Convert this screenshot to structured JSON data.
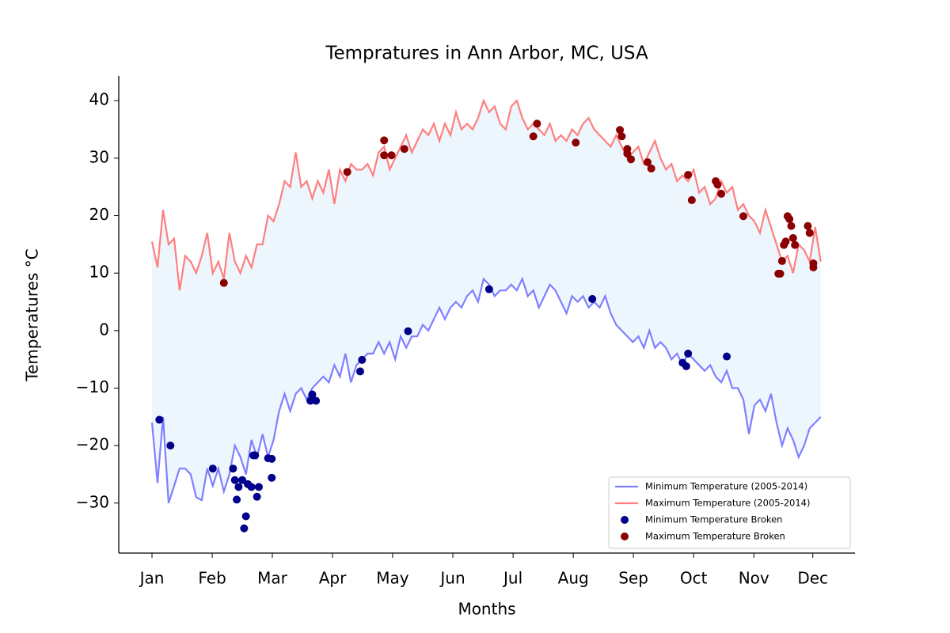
{
  "chart_data": {
    "type": "line",
    "title": "Tempratures in Ann Arbor, MC, USA",
    "x_label": "Months",
    "y_label": "Temperatures °C",
    "xlim": [
      -18.05,
      381.6
    ],
    "ylim": [
      -38.7,
      44.3
    ],
    "xticks": [
      {
        "value": 0,
        "label": "Jan"
      },
      {
        "value": 32.7,
        "label": "Feb"
      },
      {
        "value": 65.3,
        "label": "Mar"
      },
      {
        "value": 98,
        "label": "Apr"
      },
      {
        "value": 130.6,
        "label": "May"
      },
      {
        "value": 163.3,
        "label": "Jun"
      },
      {
        "value": 196,
        "label": "Jul"
      },
      {
        "value": 228.7,
        "label": "Aug"
      },
      {
        "value": 261.3,
        "label": "Sep"
      },
      {
        "value": 294,
        "label": "Oct"
      },
      {
        "value": 326.7,
        "label": "Nov"
      },
      {
        "value": 358.7,
        "label": "Dec"
      }
    ],
    "yticks": [
      {
        "value": -30,
        "label": "−30"
      },
      {
        "value": -20,
        "label": "−20"
      },
      {
        "value": -10,
        "label": "−10"
      },
      0,
      10,
      20,
      30,
      40
    ],
    "fill_between": "#eef6fd",
    "legend": "lower right",
    "x": [
      0,
      3,
      6,
      9,
      12,
      15,
      18,
      21,
      24,
      27,
      30,
      33,
      36,
      39,
      42,
      45,
      48,
      51,
      54,
      57,
      60,
      63,
      66,
      69,
      72,
      75,
      78,
      81,
      84,
      87,
      90,
      93,
      96,
      99,
      102,
      105,
      108,
      111,
      114,
      117,
      120,
      123,
      126,
      129,
      132,
      135,
      138,
      141,
      144,
      147,
      150,
      153,
      156,
      159,
      162,
      165,
      168,
      171,
      174,
      177,
      180,
      183,
      186,
      189,
      192,
      195,
      198,
      201,
      204,
      207,
      210,
      213,
      216,
      219,
      222,
      225,
      228,
      231,
      234,
      237,
      240,
      243,
      246,
      249,
      252,
      255,
      258,
      261,
      264,
      267,
      270,
      273,
      276,
      279,
      282,
      285,
      288,
      291,
      294,
      297,
      300,
      303,
      306,
      309,
      312,
      315,
      318,
      321,
      324,
      327,
      330,
      333,
      336,
      339,
      342,
      345,
      348,
      351,
      354,
      357,
      360,
      363
    ],
    "series": [
      {
        "name": "Minimum Temperature (2005-2014)",
        "type": "line",
        "color": "#7f7fff",
        "values": [
          -16,
          -26.5,
          -15,
          -30,
          -27,
          -24,
          -24,
          -25,
          -29,
          -29.5,
          -24,
          -27,
          -24,
          -28,
          -25,
          -20,
          -22,
          -25,
          -19,
          -22,
          -18,
          -22,
          -19,
          -14,
          -11,
          -14,
          -11,
          -10,
          -12,
          -10,
          -9,
          -8,
          -9,
          -6,
          -8,
          -4,
          -9,
          -6,
          -5,
          -4,
          -4,
          -2,
          -4,
          -2,
          -5,
          -1,
          -3,
          -1,
          -1,
          1,
          0,
          2,
          4,
          2,
          4,
          5,
          4,
          6,
          7,
          5,
          9,
          8,
          6,
          7,
          7,
          8,
          7,
          9,
          6,
          7,
          4,
          6,
          8,
          7,
          5,
          3,
          6,
          5,
          6,
          4,
          5,
          4,
          6,
          3,
          1,
          0,
          -1,
          -2,
          -1,
          -3,
          0,
          -3,
          -2,
          -3,
          -5,
          -4,
          -6,
          -4,
          -5,
          -6,
          -7,
          -6,
          -8,
          -9,
          -7,
          -10,
          -10,
          -12,
          -18,
          -13,
          -12,
          -14,
          -11,
          -16,
          -20,
          -17,
          -19,
          -22,
          -20,
          -17,
          -16,
          -15
        ]
      },
      {
        "name": "Maximum Temperature (2005-2014)",
        "type": "line",
        "color": "#ff7f7f",
        "values": [
          15.5,
          11,
          21,
          15,
          16,
          7,
          13,
          12,
          10,
          13,
          17,
          10,
          12,
          9,
          17,
          12,
          10,
          13,
          11,
          15,
          15,
          20,
          19,
          22,
          26,
          25,
          31,
          25,
          26,
          23,
          26,
          24,
          28,
          22,
          28,
          26,
          29,
          28,
          28,
          29,
          27,
          31,
          32,
          28,
          30,
          32,
          34,
          31,
          33,
          35,
          34,
          36,
          33,
          36,
          34,
          38,
          35,
          36,
          35,
          37,
          40,
          38,
          39,
          36,
          35,
          39,
          40,
          37,
          35,
          36,
          35,
          34,
          36,
          33,
          34,
          33,
          35,
          34,
          36,
          37,
          35,
          34,
          33,
          32,
          34,
          32,
          30,
          31,
          32,
          29,
          31,
          33,
          30,
          28,
          29,
          26,
          27,
          26,
          28,
          24,
          25,
          22,
          23,
          26,
          24,
          25,
          21,
          22,
          20,
          19,
          17,
          21,
          18,
          15,
          12,
          13,
          10,
          15,
          14,
          12,
          18,
          12
        ]
      },
      {
        "name": "Minimum Temperature Broken",
        "type": "scatter",
        "color": "#00008b",
        "x": [
          4,
          10,
          33,
          44,
          45,
          46,
          47,
          49,
          50,
          51,
          52,
          54,
          55,
          56,
          57,
          58,
          63,
          65,
          65,
          86,
          87,
          89,
          113,
          114,
          139,
          183,
          239,
          288,
          290,
          291,
          312
        ],
        "values": [
          -15.5,
          -20,
          -24,
          -24,
          -26,
          -29.4,
          -27.2,
          -26,
          -34.4,
          -32.3,
          -26.7,
          -27.2,
          -21.7,
          -21.7,
          -28.9,
          -27.2,
          -22.2,
          -25.6,
          -22.3,
          -12.2,
          -11.1,
          -12.2,
          -7.1,
          -5.1,
          -0.1,
          7.2,
          5.5,
          -5.6,
          -6.2,
          -4,
          -4.5
        ]
      },
      {
        "name": "Maximum Temperature Broken",
        "type": "scatter",
        "color": "#8b0000",
        "x": [
          39,
          106,
          126,
          126,
          130,
          137,
          207,
          209,
          230,
          254,
          255,
          258,
          258,
          260,
          269,
          271,
          291,
          293,
          306,
          307,
          309,
          321,
          340,
          341,
          342,
          343,
          344,
          345,
          346,
          347,
          348,
          349,
          356,
          357,
          359,
          359
        ],
        "values": [
          8.3,
          27.6,
          33.1,
          30.5,
          30.5,
          31.6,
          33.8,
          36,
          32.7,
          34.9,
          33.8,
          31.6,
          30.8,
          29.8,
          29.3,
          28.2,
          27.1,
          22.7,
          26,
          25.4,
          23.8,
          19.9,
          9.9,
          9.9,
          12.1,
          14.9,
          15.5,
          19.9,
          19.4,
          18.2,
          16.1,
          14.9,
          18.2,
          17,
          11,
          11.7
        ]
      }
    ]
  }
}
